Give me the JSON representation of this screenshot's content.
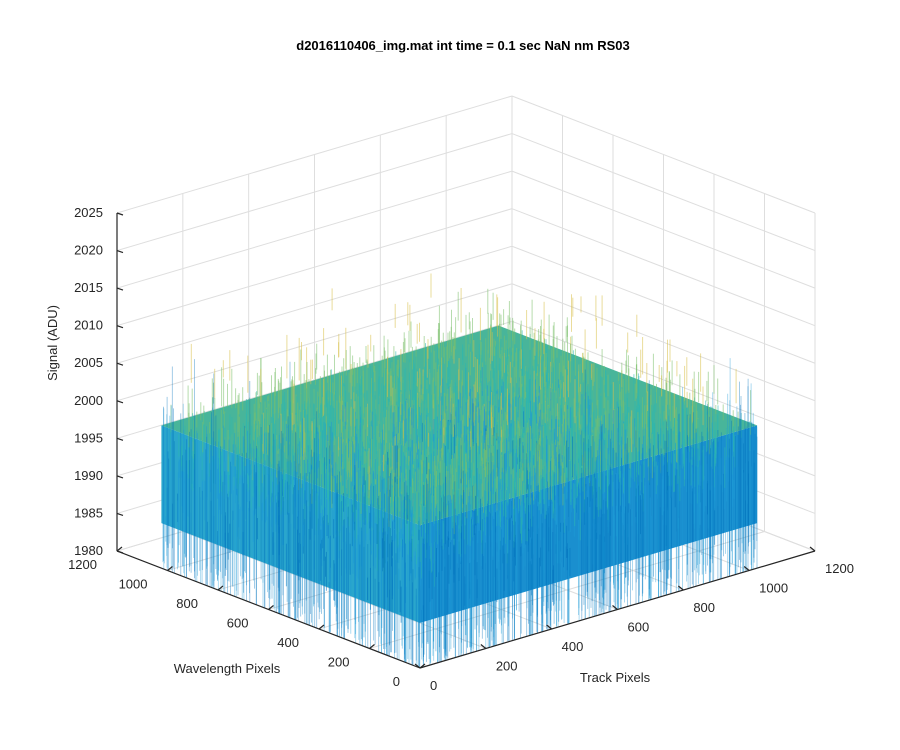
{
  "chart_data": {
    "type": "surface",
    "title": "d2016110406_img.mat int time = 0.1 sec  NaN nm RS03",
    "xlabel": "Track Pixels",
    "ylabel": "Wavelength Pixels",
    "zlabel": "Signal (ADU)",
    "xlim": [
      0,
      1200
    ],
    "ylim": [
      0,
      1200
    ],
    "zlim": [
      1980,
      2025
    ],
    "xticks": [
      "0",
      "200",
      "400",
      "600",
      "800",
      "1000",
      "1200"
    ],
    "yticks": [
      "0",
      "200",
      "400",
      "600",
      "800",
      "1000",
      "1200"
    ],
    "zticks": [
      "1980",
      "1985",
      "1990",
      "1995",
      "2000",
      "2005",
      "2010",
      "2015",
      "2020",
      "2025"
    ],
    "surface": {
      "x_extent": [
        0,
        1024
      ],
      "y_extent": [
        0,
        1024
      ],
      "mean_signal": 1998,
      "typical_range": [
        1988,
        2008
      ],
      "colormap": "parula",
      "colors": [
        "#0072bd",
        "#1d9ad6",
        "#2db7b0",
        "#7cc06c",
        "#d9c04a"
      ]
    },
    "grid": true,
    "view": "3-D"
  }
}
